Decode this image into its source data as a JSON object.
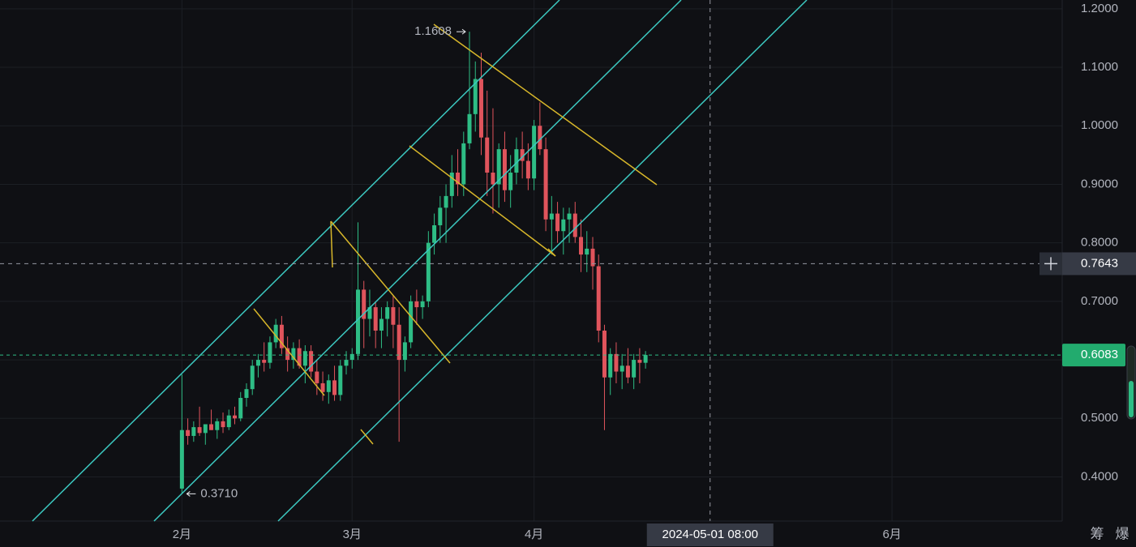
{
  "chart_data": {
    "type": "candlestick",
    "x": [
      "2024-02-01",
      "2024-02-02",
      "2024-02-03",
      "2024-02-04",
      "2024-02-05",
      "2024-02-06",
      "2024-02-07",
      "2024-02-08",
      "2024-02-09",
      "2024-02-10",
      "2024-02-11",
      "2024-02-12",
      "2024-02-13",
      "2024-02-14",
      "2024-02-15",
      "2024-02-16",
      "2024-02-17",
      "2024-02-18",
      "2024-02-19",
      "2024-02-20",
      "2024-02-21",
      "2024-02-22",
      "2024-02-23",
      "2024-02-24",
      "2024-02-25",
      "2024-02-26",
      "2024-02-27",
      "2024-02-28",
      "2024-02-29",
      "2024-03-01",
      "2024-03-02",
      "2024-03-03",
      "2024-03-04",
      "2024-03-05",
      "2024-03-06",
      "2024-03-07",
      "2024-03-08",
      "2024-03-09",
      "2024-03-10",
      "2024-03-11",
      "2024-03-12",
      "2024-03-13",
      "2024-03-14",
      "2024-03-15",
      "2024-03-16",
      "2024-03-17",
      "2024-03-18",
      "2024-03-19",
      "2024-03-20",
      "2024-03-21",
      "2024-03-22",
      "2024-03-23",
      "2024-03-24",
      "2024-03-25",
      "2024-03-26",
      "2024-03-27",
      "2024-03-28",
      "2024-03-29",
      "2024-03-30",
      "2024-03-31",
      "2024-04-01",
      "2024-04-02",
      "2024-04-03",
      "2024-04-04",
      "2024-04-05",
      "2024-04-06",
      "2024-04-07",
      "2024-04-08",
      "2024-04-09",
      "2024-04-10",
      "2024-04-11",
      "2024-04-12",
      "2024-04-13",
      "2024-04-14",
      "2024-04-15",
      "2024-04-16",
      "2024-04-17",
      "2024-04-18",
      "2024-04-19",
      "2024-04-20"
    ],
    "open": [
      0.38,
      0.48,
      0.47,
      0.485,
      0.475,
      0.49,
      0.48,
      0.495,
      0.485,
      0.505,
      0.5,
      0.535,
      0.55,
      0.59,
      0.6,
      0.595,
      0.63,
      0.66,
      0.62,
      0.6,
      0.62,
      0.59,
      0.615,
      0.58,
      0.56,
      0.545,
      0.565,
      0.54,
      0.59,
      0.6,
      0.61,
      0.72,
      0.67,
      0.69,
      0.65,
      0.67,
      0.69,
      0.66,
      0.6,
      0.63,
      0.7,
      0.69,
      0.7,
      0.8,
      0.83,
      0.86,
      0.88,
      0.92,
      0.9,
      0.97,
      1.02,
      1.08,
      0.98,
      0.92,
      0.9,
      0.96,
      0.89,
      0.92,
      0.96,
      0.94,
      0.91,
      1.0,
      0.96,
      0.84,
      0.85,
      0.82,
      0.84,
      0.85,
      0.81,
      0.78,
      0.79,
      0.76,
      0.65,
      0.57,
      0.61,
      0.58,
      0.59,
      0.57,
      0.6,
      0.595
    ],
    "high": [
      0.575,
      0.5,
      0.495,
      0.52,
      0.49,
      0.515,
      0.5,
      0.51,
      0.515,
      0.52,
      0.545,
      0.56,
      0.6,
      0.61,
      0.63,
      0.64,
      0.67,
      0.675,
      0.64,
      0.63,
      0.635,
      0.625,
      0.625,
      0.6,
      0.58,
      0.575,
      0.59,
      0.6,
      0.615,
      0.62,
      0.835,
      0.735,
      0.72,
      0.7,
      0.69,
      0.7,
      0.71,
      0.69,
      0.64,
      0.71,
      0.72,
      0.71,
      0.82,
      0.85,
      0.88,
      0.9,
      0.95,
      0.96,
      0.99,
      1.1608,
      1.11,
      1.125,
      1.06,
      1.03,
      0.97,
      0.99,
      0.95,
      0.98,
      0.99,
      0.97,
      1.01,
      1.04,
      0.98,
      0.88,
      0.87,
      0.86,
      0.86,
      0.87,
      0.84,
      0.82,
      0.81,
      0.78,
      0.66,
      0.62,
      0.63,
      0.61,
      0.62,
      0.61,
      0.62,
      0.615
    ],
    "low": [
      0.371,
      0.455,
      0.46,
      0.47,
      0.455,
      0.48,
      0.465,
      0.475,
      0.48,
      0.49,
      0.495,
      0.52,
      0.54,
      0.57,
      0.58,
      0.585,
      0.62,
      0.61,
      0.58,
      0.585,
      0.585,
      0.56,
      0.57,
      0.54,
      0.53,
      0.525,
      0.53,
      0.53,
      0.575,
      0.585,
      0.6,
      0.62,
      0.64,
      0.62,
      0.62,
      0.64,
      0.62,
      0.46,
      0.58,
      0.62,
      0.66,
      0.67,
      0.69,
      0.78,
      0.8,
      0.8,
      0.86,
      0.88,
      0.88,
      0.96,
      0.99,
      0.95,
      0.88,
      0.85,
      0.86,
      0.87,
      0.86,
      0.9,
      0.91,
      0.89,
      0.89,
      0.95,
      0.82,
      0.78,
      0.8,
      0.78,
      0.8,
      0.8,
      0.75,
      0.75,
      0.72,
      0.63,
      0.48,
      0.54,
      0.56,
      0.55,
      0.56,
      0.55,
      0.56,
      0.585
    ],
    "close": [
      0.48,
      0.47,
      0.485,
      0.475,
      0.49,
      0.48,
      0.495,
      0.485,
      0.505,
      0.5,
      0.535,
      0.55,
      0.59,
      0.6,
      0.595,
      0.63,
      0.66,
      0.62,
      0.6,
      0.62,
      0.59,
      0.615,
      0.58,
      0.56,
      0.545,
      0.565,
      0.54,
      0.59,
      0.6,
      0.61,
      0.72,
      0.67,
      0.69,
      0.65,
      0.67,
      0.69,
      0.66,
      0.6,
      0.63,
      0.7,
      0.69,
      0.7,
      0.8,
      0.83,
      0.86,
      0.88,
      0.92,
      0.9,
      0.97,
      1.02,
      1.08,
      0.98,
      0.92,
      0.9,
      0.96,
      0.89,
      0.92,
      0.96,
      0.94,
      0.91,
      1.0,
      0.96,
      0.84,
      0.85,
      0.82,
      0.84,
      0.85,
      0.81,
      0.78,
      0.79,
      0.76,
      0.65,
      0.57,
      0.61,
      0.58,
      0.59,
      0.57,
      0.6,
      0.595,
      0.6083
    ],
    "up_color": "#2ebd85",
    "down_color": "#e0545c",
    "xlim": [
      "2024-01-01",
      "2024-06-30"
    ],
    "xticks": [
      {
        "value": "2024-02-01",
        "label": "2月"
      },
      {
        "value": "2024-03-01",
        "label": "3月"
      },
      {
        "value": "2024-04-01",
        "label": "4月"
      },
      {
        "value": "2024-06-01",
        "label": "6月"
      }
    ],
    "ylim": [
      0.3245,
      1.215
    ],
    "yticks": [
      {
        "value": 0.4,
        "label": "0.4000"
      },
      {
        "value": 0.5,
        "label": "0.5000"
      },
      {
        "value": 0.6,
        "label": "0.6000"
      },
      {
        "value": 0.7,
        "label": "0.7000"
      },
      {
        "value": 0.8,
        "label": "0.8000"
      },
      {
        "value": 0.9,
        "label": "0.9000"
      },
      {
        "value": 1.0,
        "label": "1.0000"
      },
      {
        "value": 1.1,
        "label": "1.1000"
      },
      {
        "value": 1.2,
        "label": "1.2000"
      }
    ],
    "grid": true,
    "annotations": [
      {
        "value": 1.1608,
        "label": "1.1608"
      },
      {
        "value": 0.371,
        "label": "0.3710"
      }
    ],
    "last_price": 0.6083,
    "crosshair": {
      "price": 0.7643,
      "time": "2024-05-01 08:00"
    },
    "toolbar": [
      "筹",
      "爆"
    ]
  }
}
